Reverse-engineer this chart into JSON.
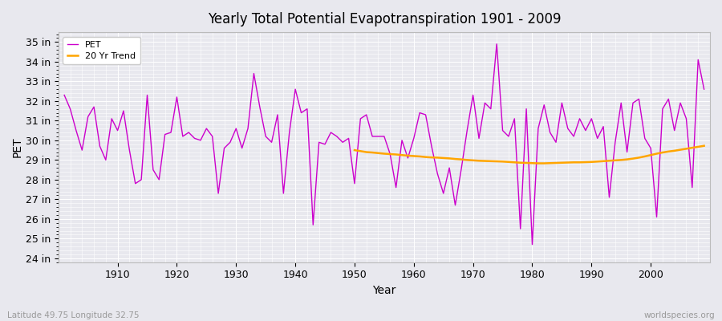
{
  "title": "Yearly Total Potential Evapotranspiration 1901 - 2009",
  "xlabel": "Year",
  "ylabel": "PET",
  "subtitle_left": "Latitude 49.75 Longitude 32.75",
  "subtitle_right": "worldspecies.org",
  "ylim": [
    23.8,
    35.5
  ],
  "yticks": [
    24,
    25,
    26,
    27,
    28,
    29,
    30,
    31,
    32,
    33,
    34,
    35
  ],
  "ytick_labels": [
    "24 in",
    "25 in",
    "26 in",
    "27 in",
    "28 in",
    "29 in",
    "30 in",
    "31 in",
    "32 in",
    "33 in",
    "34 in",
    "35 in"
  ],
  "pet_color": "#cc00cc",
  "trend_color": "#ffa500",
  "bg_color": "#e8e8ee",
  "legend_bg": "#ffffff",
  "years": [
    1901,
    1902,
    1903,
    1904,
    1905,
    1906,
    1907,
    1908,
    1909,
    1910,
    1911,
    1912,
    1913,
    1914,
    1915,
    1916,
    1917,
    1918,
    1919,
    1920,
    1921,
    1922,
    1923,
    1924,
    1925,
    1926,
    1927,
    1928,
    1929,
    1930,
    1931,
    1932,
    1933,
    1934,
    1935,
    1936,
    1937,
    1938,
    1939,
    1940,
    1941,
    1942,
    1943,
    1944,
    1945,
    1946,
    1947,
    1948,
    1949,
    1950,
    1951,
    1952,
    1953,
    1954,
    1955,
    1956,
    1957,
    1958,
    1959,
    1960,
    1961,
    1962,
    1963,
    1964,
    1965,
    1966,
    1967,
    1968,
    1969,
    1970,
    1971,
    1972,
    1973,
    1974,
    1975,
    1976,
    1977,
    1978,
    1979,
    1980,
    1981,
    1982,
    1983,
    1984,
    1985,
    1986,
    1987,
    1988,
    1989,
    1990,
    1991,
    1992,
    1993,
    1994,
    1995,
    1996,
    1997,
    1998,
    1999,
    2000,
    2001,
    2002,
    2003,
    2004,
    2005,
    2006,
    2007,
    2008,
    2009
  ],
  "pet_values": [
    32.3,
    31.6,
    30.5,
    29.5,
    31.2,
    31.7,
    29.7,
    29.0,
    31.1,
    30.5,
    31.5,
    29.5,
    27.8,
    28.0,
    32.3,
    28.5,
    28.0,
    30.3,
    30.4,
    32.2,
    30.2,
    30.4,
    30.1,
    30.0,
    30.6,
    30.2,
    27.3,
    29.6,
    29.9,
    30.6,
    29.6,
    30.6,
    33.4,
    31.7,
    30.2,
    29.9,
    31.3,
    27.3,
    30.4,
    32.6,
    31.4,
    31.6,
    25.7,
    29.9,
    29.8,
    30.4,
    30.2,
    29.9,
    30.1,
    27.8,
    31.1,
    31.3,
    30.2,
    30.2,
    30.2,
    29.3,
    27.6,
    30.0,
    29.1,
    30.1,
    31.4,
    31.3,
    29.7,
    28.3,
    27.3,
    28.6,
    26.7,
    28.5,
    30.5,
    32.3,
    30.1,
    31.9,
    31.6,
    34.9,
    30.5,
    30.2,
    31.1,
    25.5,
    31.6,
    24.7,
    30.6,
    31.8,
    30.4,
    29.9,
    31.9,
    30.6,
    30.2,
    31.1,
    30.5,
    31.1,
    30.1,
    30.7,
    27.1,
    29.9,
    31.9,
    29.4,
    31.9,
    32.1,
    30.1,
    29.6,
    26.1,
    31.6,
    32.1,
    30.5,
    31.9,
    31.1,
    27.6,
    34.1,
    32.6
  ],
  "trend_years": [
    1950,
    1951,
    1952,
    1953,
    1954,
    1955,
    1956,
    1957,
    1958,
    1959,
    1960,
    1961,
    1962,
    1963,
    1964,
    1965,
    1966,
    1967,
    1968,
    1969,
    1970,
    1971,
    1972,
    1973,
    1974,
    1975,
    1976,
    1977,
    1978,
    1979,
    1980,
    1981,
    1982,
    1983,
    1984,
    1985,
    1986,
    1987,
    1988,
    1989,
    1990,
    1991,
    1992,
    1993,
    1994,
    1995,
    1996,
    1997,
    1998,
    1999,
    2000,
    2001,
    2002,
    2003,
    2004,
    2005,
    2006,
    2007,
    2008,
    2009
  ],
  "trend_values": [
    29.5,
    29.45,
    29.4,
    29.38,
    29.35,
    29.32,
    29.3,
    29.28,
    29.25,
    29.22,
    29.2,
    29.18,
    29.15,
    29.13,
    29.12,
    29.1,
    29.08,
    29.05,
    29.03,
    29.0,
    28.98,
    28.96,
    28.95,
    28.94,
    28.93,
    28.92,
    28.9,
    28.88,
    28.86,
    28.85,
    28.84,
    28.83,
    28.83,
    28.84,
    28.85,
    28.86,
    28.87,
    28.88,
    28.88,
    28.89,
    28.9,
    28.92,
    28.94,
    28.96,
    28.98,
    29.0,
    29.03,
    29.07,
    29.12,
    29.18,
    29.25,
    29.32,
    29.38,
    29.43,
    29.47,
    29.52,
    29.57,
    29.62,
    29.67,
    29.72
  ],
  "xlim": [
    1900,
    2010
  ],
  "xticks": [
    1910,
    1920,
    1930,
    1940,
    1950,
    1960,
    1970,
    1980,
    1990,
    2000
  ]
}
